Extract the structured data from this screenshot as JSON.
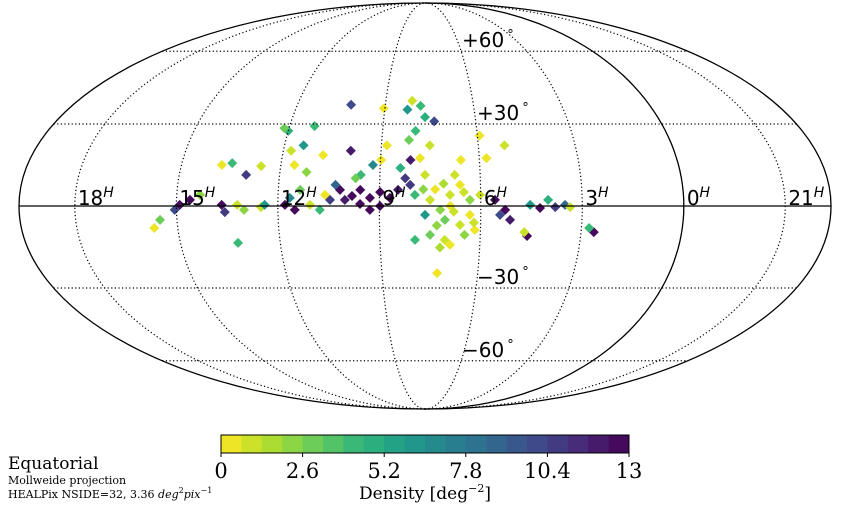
{
  "chart_data": {
    "type": "heatmap",
    "projection": "Mollweide projection",
    "frame": "Equatorial",
    "resolution_note": "HEALPix NSIDE=32, 3.36",
    "resolution_unit_base": "deg",
    "resolution_unit_exp1": "2",
    "resolution_unit_mid": "pix",
    "resolution_unit_exp2": "−1",
    "center_ra_hours": 7.65,
    "ra_labels": [
      {
        "num": "18",
        "sup": "H",
        "ra": 18
      },
      {
        "num": "15",
        "sup": "H",
        "ra": 15
      },
      {
        "num": "12",
        "sup": "H",
        "ra": 12
      },
      {
        "num": "9",
        "sup": "H",
        "ra": 9
      },
      {
        "num": "6",
        "sup": "H",
        "ra": 6
      },
      {
        "num": "3",
        "sup": "H",
        "ra": 3
      },
      {
        "num": "0",
        "sup": "H",
        "ra": 0
      },
      {
        "num": "21",
        "sup": "H",
        "ra": 21
      }
    ],
    "dec_labels": [
      {
        "text": "+60",
        "deg": "°",
        "dec": 60
      },
      {
        "text": "+30",
        "deg": "°",
        "dec": 30
      },
      {
        "text": "−30",
        "deg": "°",
        "dec": -30
      },
      {
        "text": "−60",
        "deg": "°",
        "dec": -60
      }
    ],
    "colorbar": {
      "label": "Density [deg",
      "label_exp": "−2",
      "label_end": "]",
      "vmin": 0,
      "vmax": 13,
      "bins": 20,
      "ticks": [
        "0",
        "2.6",
        "5.2",
        "7.8",
        "10.4",
        "13"
      ],
      "colormap": [
        "#fde725",
        "#b5de2b",
        "#6ece58",
        "#35b779",
        "#1f9e89",
        "#26828e",
        "#31688e",
        "#3e4989",
        "#482878",
        "#440154"
      ]
    },
    "cells": [
      [
        9.81,
        3.6,
        13
      ],
      [
        9.57,
        5.8,
        13
      ],
      [
        9.57,
        0.7,
        13
      ],
      [
        9.28,
        2.9,
        13
      ],
      [
        8.98,
        5.0,
        13
      ],
      [
        8.98,
        0,
        13
      ],
      [
        8.69,
        2.9,
        13
      ],
      [
        8.45,
        5.8,
        12
      ],
      [
        9.28,
        -1.4,
        13
      ],
      [
        10.17,
        5.8,
        13
      ],
      [
        10.02,
        2.2,
        12
      ],
      [
        10.46,
        2.2,
        11
      ],
      [
        10.31,
        7.6,
        9
      ],
      [
        11.79,
        0.4,
        13
      ],
      [
        11.5,
        -1.4,
        13
      ],
      [
        11.65,
        2.9,
        7
      ],
      [
        11.35,
        5.8,
        3
      ],
      [
        11.05,
        0.4,
        1
      ],
      [
        10.76,
        -1.4,
        4
      ],
      [
        10.61,
        4,
        0.5
      ],
      [
        11.2,
        12.2,
        2
      ],
      [
        11.59,
        14.8,
        0.5
      ],
      [
        11.41,
        22,
        6
      ],
      [
        12.0,
        27.4,
        5
      ],
      [
        12.15,
        28.4,
        3
      ],
      [
        11.2,
        29.2,
        4
      ],
      [
        10.17,
        37.4,
        10
      ],
      [
        11.76,
        20,
        1
      ],
      [
        14.9,
        0.4,
        13
      ],
      [
        14.6,
        2.2,
        13
      ],
      [
        15.05,
        -1.4,
        10
      ],
      [
        14.31,
        4,
        2
      ],
      [
        13.66,
        0.4,
        13
      ],
      [
        13.57,
        -2.2,
        11
      ],
      [
        13.2,
        0.4,
        1
      ],
      [
        13.0,
        -1.4,
        2
      ],
      [
        12.5,
        -0.4,
        1
      ],
      [
        12.39,
        0.4,
        6
      ],
      [
        15.5,
        -5,
        3
      ],
      [
        15.7,
        -7.9,
        0.5
      ],
      [
        13.27,
        -13.3,
        4
      ],
      [
        13.48,
        15.5,
        4
      ],
      [
        13.78,
        14.8,
        0.5
      ],
      [
        13.0,
        11.2,
        11
      ],
      [
        12.59,
        14.4,
        1
      ],
      [
        8.09,
        39,
        1
      ],
      [
        7.8,
        37,
        4
      ],
      [
        8.24,
        35.5,
        6
      ],
      [
        7.65,
        32.6,
        5
      ],
      [
        7.35,
        31,
        10
      ],
      [
        7.95,
        27.4,
        4
      ],
      [
        8.15,
        24,
        3
      ],
      [
        7.5,
        22,
        1
      ],
      [
        8.09,
        16.6,
        12
      ],
      [
        8.39,
        13.7,
        5
      ],
      [
        7.8,
        17.3,
        0.5
      ],
      [
        7.65,
        11.2,
        1
      ],
      [
        8.24,
        10,
        11
      ],
      [
        8.98,
        16.6,
        0.5
      ],
      [
        8.83,
        22,
        0.5
      ],
      [
        9.04,
        36,
        0.5
      ],
      [
        9.22,
        14.8,
        7
      ],
      [
        9.57,
        11.2,
        4
      ],
      [
        9.93,
        20,
        12
      ],
      [
        10.76,
        18.4,
        0.5
      ],
      [
        9.72,
        10,
        3
      ],
      [
        8.09,
        7.6,
        11
      ],
      [
        7.95,
        4,
        4
      ],
      [
        7.5,
        2.2,
        1
      ],
      [
        7.2,
        -1.4,
        2
      ],
      [
        6.91,
        4,
        1
      ],
      [
        6.61,
        7.6,
        0.5
      ],
      [
        6.32,
        2.2,
        2
      ],
      [
        6.76,
        11.2,
        1
      ],
      [
        7.06,
        -5,
        3
      ],
      [
        6.61,
        -6.8,
        1
      ],
      [
        6.32,
        -3.2,
        0.5
      ],
      [
        7.5,
        -10.4,
        3
      ],
      [
        7.06,
        -12.2,
        1
      ],
      [
        6.47,
        -10.4,
        2
      ],
      [
        6.17,
        -8.6,
        0.5
      ],
      [
        7.65,
        -3.2,
        6
      ],
      [
        7.95,
        -12.2,
        4
      ],
      [
        6.02,
        4,
        1
      ],
      [
        6.56,
        16.6,
        0.5
      ],
      [
        7.27,
        -24.4,
        0.5
      ],
      [
        5.93,
        25.6,
        0.5
      ],
      [
        5.78,
        17.3,
        0.5
      ],
      [
        5.19,
        22,
        1
      ],
      [
        7.35,
        6,
        0.5
      ],
      [
        7.1,
        8,
        1.5
      ],
      [
        6.9,
        0,
        0.5
      ],
      [
        7.3,
        -7,
        2
      ],
      [
        6.8,
        -2,
        1
      ],
      [
        6.5,
        5,
        1
      ],
      [
        7.7,
        6,
        2
      ],
      [
        6.2,
        -6,
        1
      ],
      [
        7.2,
        -15,
        1.5
      ],
      [
        6.9,
        -14,
        0.5
      ],
      [
        5.58,
        2.2,
        13
      ],
      [
        5.28,
        -1.4,
        13
      ],
      [
        5.13,
        -5,
        12
      ],
      [
        5.43,
        -3.2,
        10
      ],
      [
        4.6,
        -10.8,
        13
      ],
      [
        4.69,
        -9.4,
        1
      ],
      [
        4.25,
        -0.7,
        13
      ],
      [
        3.8,
        -0.4,
        11
      ],
      [
        4.54,
        0.4,
        6
      ],
      [
        3.51,
        0.4,
        9
      ],
      [
        3.36,
        -0.4,
        1
      ],
      [
        2.62,
        -9.4,
        13
      ],
      [
        2.77,
        -7.9,
        4
      ],
      [
        4.01,
        2.2,
        5
      ]
    ]
  }
}
